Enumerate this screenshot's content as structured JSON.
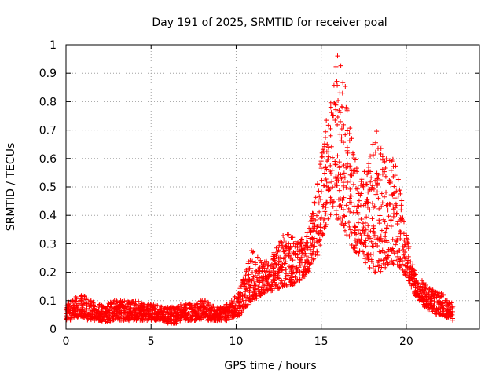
{
  "chart_data": {
    "type": "scatter",
    "title": "Day 191 of 2025, SRMTID for receiver poal",
    "xlabel": "GPS time / hours",
    "ylabel": "SRMTID / TECUs",
    "xlim": [
      0,
      24.3
    ],
    "ylim": [
      0,
      1
    ],
    "x_ticks": [
      0,
      5,
      10,
      15,
      20
    ],
    "x_tick_labels": [
      "0",
      "5",
      "10",
      "15",
      "20"
    ],
    "y_ticks": [
      0,
      0.1,
      0.2,
      0.3,
      0.4,
      0.5,
      0.6,
      0.7,
      0.8,
      0.9,
      1
    ],
    "y_tick_labels": [
      "0",
      "0.1",
      "0.2",
      "0.3",
      "0.4",
      "0.5",
      "0.6",
      "0.7",
      "0.8",
      "0.9",
      "1"
    ],
    "grid": true,
    "marker": "+",
    "series_color": "#ff0000",
    "series": [
      {
        "name": "SRMTID",
        "x": [
          0.0,
          0.25,
          0.5,
          0.75,
          1.0,
          1.25,
          1.5,
          1.75,
          2.0,
          2.25,
          2.5,
          2.75,
          3.0,
          3.25,
          3.5,
          3.75,
          4.0,
          4.25,
          4.5,
          4.75,
          5.0,
          5.25,
          5.5,
          5.75,
          6.0,
          6.25,
          6.5,
          6.75,
          7.0,
          7.25,
          7.5,
          7.75,
          8.0,
          8.25,
          8.5,
          8.75,
          9.0,
          9.25,
          9.5,
          9.75,
          10.0,
          10.25,
          10.5,
          10.75,
          11.0,
          11.25,
          11.5,
          11.75,
          12.0,
          12.25,
          12.5,
          12.75,
          13.0,
          13.25,
          13.5,
          13.75,
          14.0,
          14.25,
          14.5,
          14.75,
          15.0,
          15.25,
          15.5,
          15.75,
          16.0,
          16.25,
          16.5,
          16.75,
          17.0,
          17.25,
          17.5,
          17.75,
          18.0,
          18.25,
          18.5,
          18.75,
          19.0,
          19.25,
          19.5,
          19.75,
          20.0,
          20.25,
          20.5,
          20.75,
          21.0,
          21.25,
          21.5,
          21.75,
          22.0,
          22.25,
          22.5,
          22.75
        ],
        "y_low": [
          0.03,
          0.03,
          0.04,
          0.04,
          0.04,
          0.03,
          0.03,
          0.03,
          0.03,
          0.02,
          0.02,
          0.03,
          0.03,
          0.03,
          0.03,
          0.03,
          0.03,
          0.03,
          0.03,
          0.03,
          0.03,
          0.03,
          0.03,
          0.03,
          0.02,
          0.02,
          0.02,
          0.03,
          0.03,
          0.03,
          0.03,
          0.03,
          0.03,
          0.03,
          0.03,
          0.03,
          0.03,
          0.03,
          0.03,
          0.04,
          0.04,
          0.05,
          0.07,
          0.09,
          0.1,
          0.11,
          0.12,
          0.13,
          0.13,
          0.14,
          0.14,
          0.15,
          0.15,
          0.15,
          0.16,
          0.17,
          0.18,
          0.2,
          0.23,
          0.25,
          0.3,
          0.35,
          0.38,
          0.4,
          0.38,
          0.35,
          0.32,
          0.3,
          0.27,
          0.25,
          0.24,
          0.22,
          0.2,
          0.2,
          0.2,
          0.21,
          0.22,
          0.22,
          0.22,
          0.2,
          0.18,
          0.15,
          0.12,
          0.1,
          0.08,
          0.07,
          0.06,
          0.05,
          0.05,
          0.04,
          0.04,
          0.03
        ],
        "y_high": [
          0.09,
          0.1,
          0.11,
          0.12,
          0.12,
          0.11,
          0.1,
          0.09,
          0.09,
          0.08,
          0.09,
          0.1,
          0.1,
          0.1,
          0.1,
          0.1,
          0.1,
          0.1,
          0.09,
          0.09,
          0.09,
          0.09,
          0.08,
          0.08,
          0.08,
          0.08,
          0.08,
          0.09,
          0.09,
          0.09,
          0.09,
          0.1,
          0.1,
          0.1,
          0.09,
          0.08,
          0.08,
          0.08,
          0.09,
          0.1,
          0.12,
          0.15,
          0.2,
          0.27,
          0.28,
          0.26,
          0.24,
          0.24,
          0.26,
          0.28,
          0.3,
          0.33,
          0.35,
          0.33,
          0.31,
          0.31,
          0.33,
          0.36,
          0.43,
          0.5,
          0.62,
          0.72,
          0.8,
          0.88,
          0.98,
          0.92,
          0.82,
          0.7,
          0.6,
          0.56,
          0.56,
          0.58,
          0.65,
          0.7,
          0.68,
          0.62,
          0.6,
          0.6,
          0.55,
          0.45,
          0.35,
          0.26,
          0.2,
          0.18,
          0.17,
          0.15,
          0.14,
          0.13,
          0.14,
          0.12,
          0.1,
          0.09
        ]
      }
    ]
  }
}
